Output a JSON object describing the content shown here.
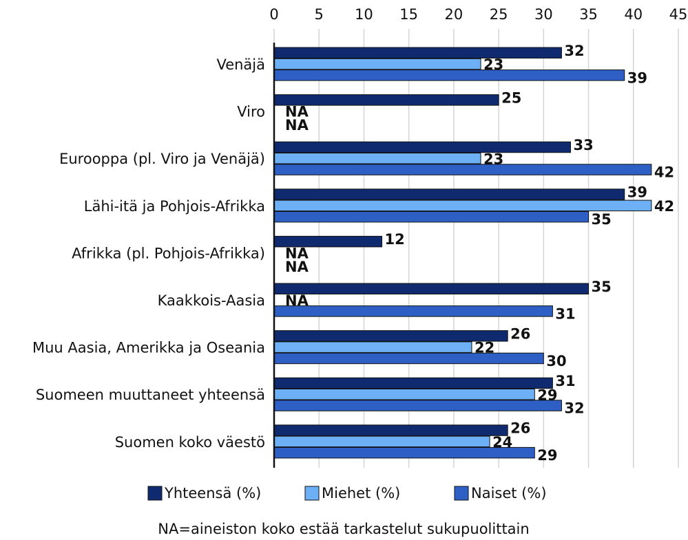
{
  "chart_data": {
    "type": "bar",
    "orientation": "horizontal",
    "categories": [
      "Venäjä",
      "Viro",
      "Eurooppa (pl. Viro ja Venäjä)",
      "Lähi-itä ja Pohjois-Afrikka",
      "Afrikka (pl. Pohjois-Afrikka)",
      "Kaakkois-Aasia",
      "Muu Aasia, Amerikka ja Oseania",
      "Suomeen muuttaneet yhteensä",
      "Suomen koko väestö"
    ],
    "series": [
      {
        "name": "Yhteensä (%)",
        "color": "#0f2a6e",
        "values": [
          32,
          25,
          33,
          39,
          12,
          35,
          26,
          31,
          26
        ],
        "value_labels": [
          "32",
          "25",
          "33",
          "39",
          "12",
          "35",
          "26",
          "31",
          "26"
        ]
      },
      {
        "name": "Miehet (%)",
        "color": "#6db0f5",
        "values": [
          23,
          null,
          23,
          42,
          null,
          null,
          22,
          29,
          24
        ],
        "value_labels": [
          "23",
          "NA",
          "23",
          "42",
          "NA",
          "NA",
          "22",
          "29",
          "24"
        ]
      },
      {
        "name": "Naiset (%)",
        "color": "#2e5fc4",
        "values": [
          39,
          null,
          42,
          35,
          null,
          31,
          30,
          32,
          29
        ],
        "value_labels": [
          "39",
          "NA",
          "42",
          "35",
          "NA",
          "31",
          "30",
          "32",
          "29"
        ]
      }
    ],
    "xlim": [
      0,
      45
    ],
    "xticks": [
      0,
      5,
      10,
      15,
      20,
      25,
      30,
      35,
      40,
      45
    ],
    "grid": true,
    "legend": "bottom",
    "note": "NA=aineiston koko estää tarkastelut sukupuolittain"
  }
}
